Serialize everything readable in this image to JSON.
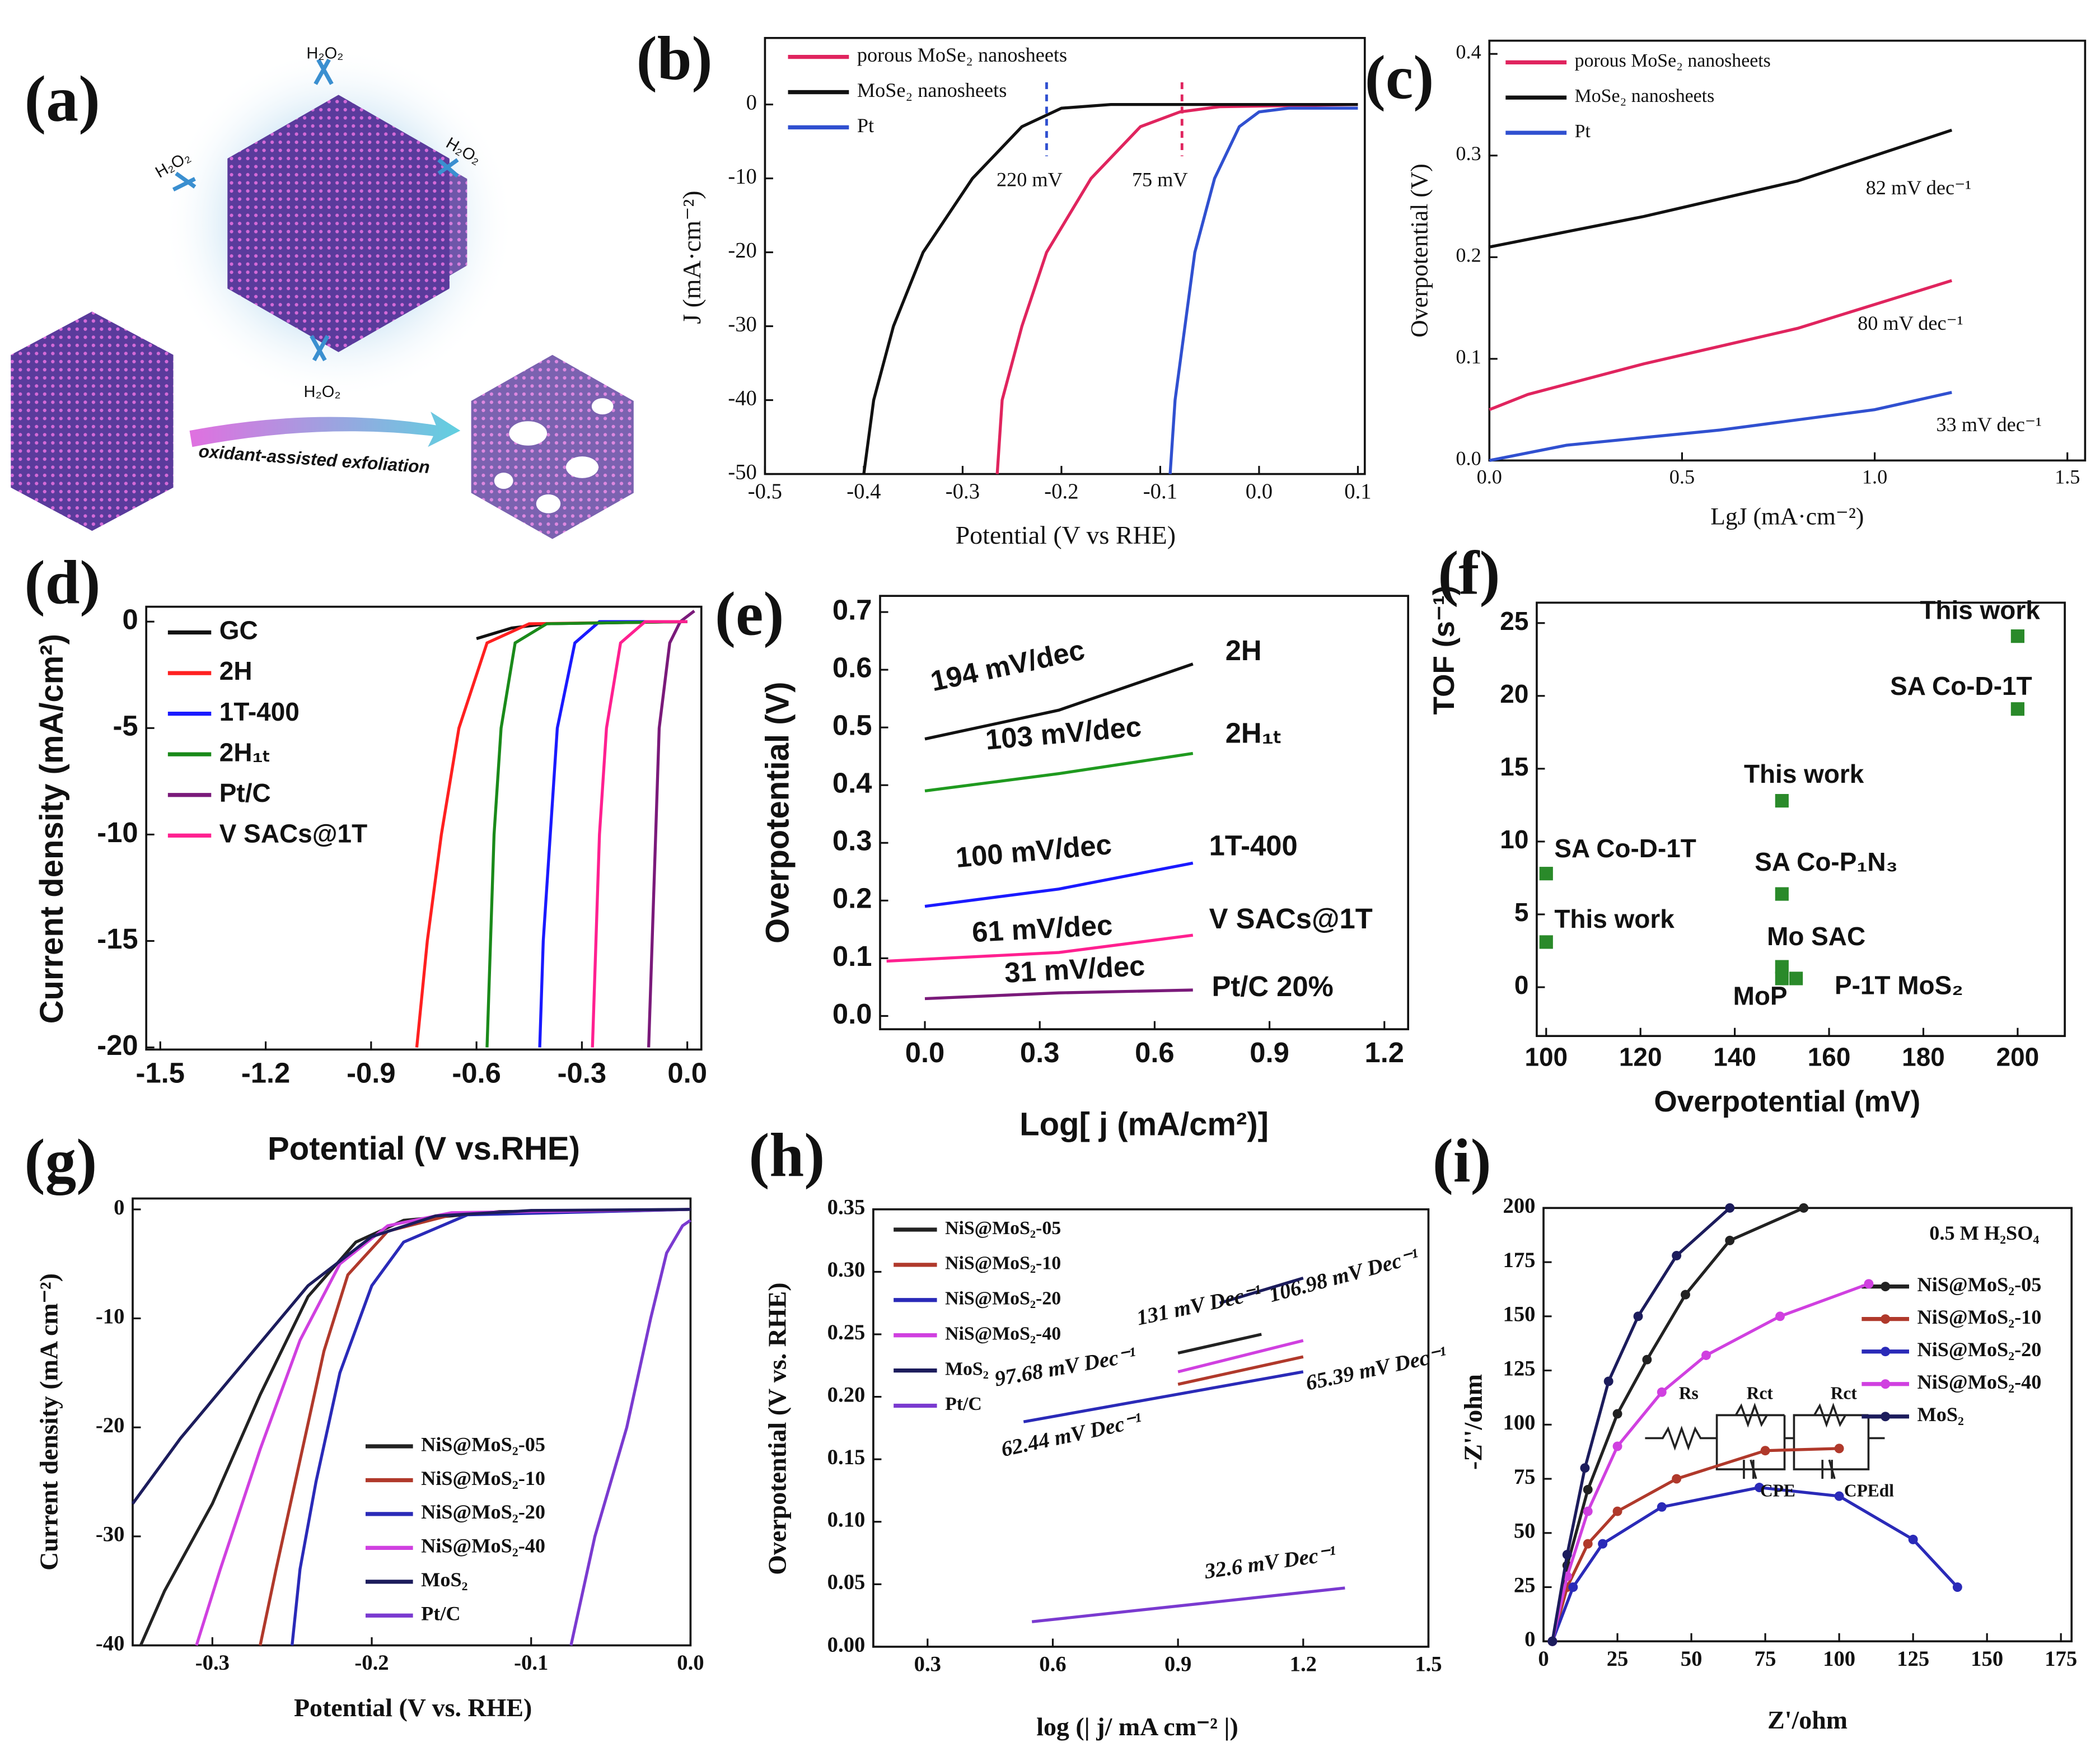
{
  "illustration": {
    "panel": "(a)",
    "oxidant_labels": [
      "H₂O₂",
      "H₂O₂",
      "H₂O₂",
      "H₂O₂"
    ],
    "arrow_label": "oxidant-assisted exfoliation"
  },
  "chart_data": [
    {
      "type": "line",
      "panel": "(b)",
      "xlabel": "Potential (V vs RHE)",
      "ylabel": "J (mA·cm⁻²)",
      "xlim": [
        -0.5,
        0.107
      ],
      "ylim": [
        -50,
        9
      ],
      "xticks": [
        -0.5,
        -0.4,
        -0.3,
        -0.2,
        -0.1,
        {
          "value": 0,
          "label": "0.0"
        },
        0.1
      ],
      "yticks": [
        0,
        -10,
        -20,
        -30,
        -40,
        -50
      ],
      "series": [
        {
          "name": "porous MoSe₂ nanosheets",
          "color": "#e0245e",
          "x": [
            -0.265,
            -0.26,
            -0.24,
            -0.215,
            -0.17,
            -0.12,
            -0.08,
            -0.04,
            0.1
          ],
          "values": [
            -50,
            -40,
            -30,
            -20,
            -10,
            -3,
            -1,
            -0.3,
            0
          ]
        },
        {
          "name": "MoSe₂ nanosheets",
          "color": "#111111",
          "x": [
            -0.4,
            -0.39,
            -0.37,
            -0.34,
            -0.29,
            -0.24,
            -0.2,
            -0.15,
            0.1
          ],
          "values": [
            -50,
            -40,
            -30,
            -20,
            -10,
            -3,
            -0.5,
            0,
            0
          ]
        },
        {
          "name": "Pt",
          "color": "#3050d0",
          "x": [
            -0.09,
            -0.085,
            -0.075,
            -0.065,
            -0.045,
            -0.02,
            0,
            0.03,
            0.1
          ],
          "values": [
            -50,
            -40,
            -30,
            -20,
            -10,
            -3,
            -1,
            -0.5,
            -0.5
          ]
        }
      ],
      "vlines": [
        {
          "x": -0.215,
          "color": "#3050d0"
        },
        {
          "x": -0.078,
          "color": "#e0245e"
        }
      ],
      "annotations": [
        "220 mV",
        "75 mV"
      ]
    },
    {
      "type": "line",
      "panel": "(c)",
      "xlabel": "LgJ (mA·cm⁻²)",
      "ylabel": "Overpotential (V)",
      "xlim": [
        0,
        1.546
      ],
      "ylim": [
        0,
        0.413
      ],
      "xticks": [
        {
          "value": 0,
          "label": "0.0"
        },
        0.5,
        {
          "value": 1,
          "label": "1.0"
        },
        1.5
      ],
      "yticks": [
        {
          "value": 0,
          "label": "0.0"
        },
        0.1,
        0.2,
        0.3,
        0.4
      ],
      "series": [
        {
          "name": "porous MoSe₂ nanosheets",
          "color": "#e0245e",
          "x": [
            0,
            0.1,
            0.4,
            0.8,
            1.2
          ],
          "values": [
            0.05,
            0.065,
            0.095,
            0.13,
            0.177
          ],
          "slope": "80 mV dec⁻¹"
        },
        {
          "name": "MoSe₂ nanosheets",
          "color": "#111111",
          "x": [
            0,
            0.4,
            0.8,
            1.2
          ],
          "values": [
            0.21,
            0.24,
            0.275,
            0.325
          ],
          "slope": "82 mV dec⁻¹"
        },
        {
          "name": "Pt",
          "color": "#3050d0",
          "x": [
            0,
            0.2,
            0.6,
            1.0,
            1.2
          ],
          "values": [
            0,
            0.015,
            0.03,
            0.05,
            0.067
          ],
          "slope": "33 mV dec⁻¹"
        }
      ]
    },
    {
      "type": "line",
      "panel": "(d)",
      "xlabel": "Potential (V vs.RHE)",
      "ylabel": "Current density (mA/cm²)",
      "xlim": [
        -1.54,
        0.04
      ],
      "ylim": [
        -20.1,
        0.7
      ],
      "xticks": [
        -1.5,
        -1.2,
        -0.9,
        -0.6,
        -0.3,
        {
          "value": 0,
          "label": "0.0"
        }
      ],
      "yticks": [
        0,
        -5,
        -10,
        -15,
        -20
      ],
      "series": [
        {
          "name": "GC",
          "color": "#111111",
          "x": [
            -0.6,
            -0.5,
            -0.4,
            0
          ],
          "values": [
            -0.8,
            -0.3,
            -0.1,
            0
          ]
        },
        {
          "name": "2H",
          "color": "#ff2020",
          "x": [
            -0.77,
            -0.74,
            -0.7,
            -0.65,
            -0.57,
            -0.45,
            0
          ],
          "values": [
            -20,
            -15,
            -10,
            -5,
            -1,
            -0.1,
            0
          ]
        },
        {
          "name": "1T-400",
          "color": "#1a1aff",
          "x": [
            -0.42,
            -0.41,
            -0.39,
            -0.37,
            -0.32,
            -0.25,
            0
          ],
          "values": [
            -20,
            -15,
            -10,
            -5,
            -1,
            0,
            0
          ]
        },
        {
          "name": "2H₁ₜ",
          "color": "#1a8a1a",
          "x": [
            -0.57,
            -0.56,
            -0.55,
            -0.53,
            -0.49,
            -0.4,
            0
          ],
          "values": [
            -20,
            -15,
            -10,
            -5,
            -1,
            -0.1,
            0
          ]
        },
        {
          "name": "Pt/C",
          "color": "#7a1a7a",
          "x": [
            -0.11,
            -0.1,
            -0.09,
            -0.08,
            -0.05,
            -0.02,
            0.02
          ],
          "values": [
            -20,
            -15,
            -10,
            -5,
            -1,
            0,
            0.5
          ]
        },
        {
          "name": "V SACs@1T",
          "color": "#ff2090",
          "x": [
            -0.27,
            -0.26,
            -0.25,
            -0.23,
            -0.19,
            -0.12,
            0
          ],
          "values": [
            -20,
            -15,
            -10,
            -5,
            -1,
            0,
            0
          ]
        }
      ]
    },
    {
      "type": "line",
      "panel": "(e)",
      "xlabel": "Log[ j (mA/cm²)]",
      "ylabel": "Overpotential (V)",
      "xlim": [
        -0.117,
        1.262
      ],
      "ylim": [
        -0.023,
        0.728
      ],
      "xticks": [
        {
          "value": 0,
          "label": "0.0"
        },
        0.3,
        0.6,
        0.9,
        1.2
      ],
      "yticks": [
        {
          "value": 0,
          "label": "0.0"
        },
        0.1,
        0.2,
        0.3,
        0.4,
        0.5,
        0.6,
        0.7
      ],
      "series": [
        {
          "name": "2H",
          "color": "#111111",
          "x": [
            0,
            0.35,
            0.7
          ],
          "values": [
            0.48,
            0.53,
            0.61
          ],
          "slope": "194 mV/dec"
        },
        {
          "name": "2H₁ₜ",
          "color": "#1f9a1f",
          "x": [
            0,
            0.35,
            0.7
          ],
          "values": [
            0.39,
            0.42,
            0.455
          ],
          "slope": "103 mV/dec"
        },
        {
          "name": "1T-400",
          "color": "#1a1aff",
          "x": [
            0,
            0.35,
            0.7
          ],
          "values": [
            0.19,
            0.22,
            0.265
          ],
          "slope": "100 mV/dec"
        },
        {
          "name": "V SACs@1T",
          "color": "#ff2090",
          "x": [
            -0.1,
            0.35,
            0.7
          ],
          "values": [
            0.095,
            0.11,
            0.14
          ],
          "slope": "61 mV/dec"
        },
        {
          "name": "Pt/C 20%",
          "color": "#7a1a7a",
          "x": [
            0,
            0.35,
            0.7
          ],
          "values": [
            0.03,
            0.04,
            0.045
          ],
          "slope": "31 mV/dec"
        }
      ]
    },
    {
      "type": "scatter",
      "panel": "(f)",
      "xlabel": "Overpotential (mV)",
      "ylabel": "TOF (s⁻¹)",
      "xlim": [
        98,
        210
      ],
      "ylim": [
        -3.35,
        26.4
      ],
      "xticks": [
        100,
        120,
        140,
        160,
        180,
        200
      ],
      "yticks": [
        0,
        5,
        10,
        15,
        20,
        25
      ],
      "color": "#2a8a2a",
      "x": [
        100,
        100,
        150,
        150,
        150,
        150,
        153,
        200,
        200
      ],
      "values": [
        7.8,
        3.1,
        12.8,
        6.4,
        1.4,
        0.6,
        0.6,
        24.1,
        19.1
      ],
      "point_labels": [
        "SA Co-D-1T",
        "This work",
        "This work",
        "SA Co-P₁N₃",
        "Mo SAC",
        "MoP",
        "P-1T MoS₂",
        "This work",
        "SA Co-D-1T"
      ],
      "label_colors": [
        "#222222",
        "#e02020",
        "#e02020",
        "#222222",
        "#222222",
        "#222222",
        "#222222",
        "#e02020",
        "#222222"
      ]
    },
    {
      "type": "line",
      "panel": "(g)",
      "xlabel": "Potential (V vs. RHE)",
      "ylabel": "Current density (mA cm⁻²)",
      "xlim": [
        -0.35,
        0
      ],
      "ylim": [
        -40,
        1
      ],
      "xticks": [
        -0.3,
        -0.2,
        -0.1,
        {
          "value": 0,
          "label": "0.0"
        }
      ],
      "yticks": [
        0,
        -10,
        -20,
        -30,
        -40
      ],
      "series": [
        {
          "name": "NiS@MoS₂-05",
          "color": "#222222",
          "x": [
            -0.345,
            -0.33,
            -0.3,
            -0.27,
            -0.24,
            -0.21,
            -0.18,
            -0.12,
            0
          ],
          "values": [
            -40,
            -35,
            -27,
            -17,
            -8,
            -3,
            -1,
            -0.2,
            0
          ]
        },
        {
          "name": "NiS@MoS₂-10",
          "color": "#b0392b",
          "x": [
            -0.27,
            -0.26,
            -0.245,
            -0.23,
            -0.215,
            -0.19,
            -0.15,
            0
          ],
          "values": [
            -40,
            -33,
            -23,
            -13,
            -6,
            -2,
            -0.5,
            0
          ]
        },
        {
          "name": "NiS@MoS₂-20",
          "color": "#2a2ab8",
          "x": [
            -0.25,
            -0.245,
            -0.235,
            -0.22,
            -0.2,
            -0.18,
            -0.14,
            0
          ],
          "values": [
            -40,
            -33,
            -25,
            -15,
            -7,
            -3,
            -0.5,
            0
          ]
        },
        {
          "name": "NiS@MoS₂-40",
          "color": "#d040e0",
          "x": [
            -0.31,
            -0.295,
            -0.27,
            -0.245,
            -0.22,
            -0.19,
            -0.15,
            0
          ],
          "values": [
            -40,
            -33,
            -22,
            -12,
            -5,
            -1.5,
            -0.3,
            0
          ]
        },
        {
          "name": "MoS₂",
          "color": "#1c1c5c",
          "x": [
            -0.35,
            -0.32,
            -0.28,
            -0.24,
            -0.2,
            -0.16,
            -0.1,
            0
          ],
          "values": [
            -27,
            -21,
            -14,
            -7,
            -2.5,
            -0.6,
            -0.1,
            0
          ]
        },
        {
          "name": "Pt/C",
          "color": "#7a3ad0",
          "x": [
            -0.075,
            -0.06,
            -0.04,
            -0.025,
            -0.015,
            -0.005,
            0
          ],
          "values": [
            -40,
            -30,
            -20,
            -10,
            -4,
            -1.5,
            -1
          ]
        }
      ]
    },
    {
      "type": "line",
      "panel": "(h)",
      "xlabel": "log (| j/ mA cm⁻² |)",
      "ylabel": "Overpotential (V vs. RHE)",
      "xlim": [
        0.17,
        1.5
      ],
      "ylim": [
        0,
        0.35
      ],
      "xticks": [
        0.3,
        0.6,
        0.9,
        1.2,
        1.5
      ],
      "yticks": [
        {
          "value": 0,
          "label": "0.00"
        },
        0.05,
        {
          "value": 0.1,
          "label": "0.10"
        },
        0.15,
        {
          "value": 0.2,
          "label": "0.20"
        },
        0.25,
        {
          "value": 0.3,
          "label": "0.30"
        },
        0.35
      ],
      "series": [
        {
          "name": "NiS@MoS₂-05",
          "color": "#222222",
          "x": [
            0.9,
            1.1
          ],
          "values": [
            0.235,
            0.25
          ],
          "slope": "106.98 mV Dec⁻¹"
        },
        {
          "name": "NiS@MoS₂-10",
          "color": "#b0392b",
          "x": [
            0.9,
            1.2
          ],
          "values": [
            0.21,
            0.232
          ],
          "slope": "65.39 mV Dec⁻¹"
        },
        {
          "name": "NiS@MoS₂-20",
          "color": "#2a2ab8",
          "x": [
            0.53,
            1.2
          ],
          "values": [
            0.18,
            0.22
          ],
          "slope": "62.44 mV Dec⁻¹"
        },
        {
          "name": "NiS@MoS₂-40",
          "color": "#d040e0",
          "x": [
            0.9,
            1.2
          ],
          "values": [
            0.22,
            0.245
          ],
          "slope": "97.68 mV Dec⁻¹"
        },
        {
          "name": "MoS₂",
          "color": "#1c1c5c",
          "x": [
            1.0,
            1.2
          ],
          "values": [
            0.275,
            0.295
          ],
          "slope": "131 mV Dec⁻¹"
        },
        {
          "name": "Pt/C",
          "color": "#7a3ad0",
          "x": [
            0.55,
            1.3
          ],
          "values": [
            0.02,
            0.047
          ],
          "slope": "32.6 mV Dec⁻¹"
        }
      ]
    },
    {
      "type": "line",
      "panel": "(i)",
      "xlabel": "Z'/ohm",
      "ylabel": "-Z''/ohm",
      "markers": true,
      "xlim": [
        0,
        178.6
      ],
      "ylim": [
        0,
        200
      ],
      "xticks": [
        0,
        25,
        50,
        75,
        100,
        125,
        150,
        175
      ],
      "yticks": [
        0,
        25,
        50,
        75,
        100,
        125,
        150,
        175,
        200
      ],
      "series": [
        {
          "name": "NiS@MoS₂-05",
          "color": "#222222",
          "x": [
            3,
            8,
            15,
            25,
            35,
            48,
            63,
            88
          ],
          "values": [
            0,
            35,
            70,
            105,
            130,
            160,
            185,
            200
          ]
        },
        {
          "name": "NiS@MoS₂-10",
          "color": "#b0392b",
          "x": [
            3,
            8,
            15,
            25,
            45,
            75,
            100
          ],
          "values": [
            0,
            25,
            45,
            60,
            75,
            88,
            89
          ]
        },
        {
          "name": "NiS@MoS₂-20",
          "color": "#2a2ab8",
          "x": [
            3,
            10,
            20,
            40,
            73,
            100,
            125,
            140
          ],
          "values": [
            0,
            25,
            45,
            62,
            71,
            67,
            47,
            25
          ]
        },
        {
          "name": "NiS@MoS₂-40",
          "color": "#d040e0",
          "x": [
            3,
            8,
            15,
            25,
            40,
            55,
            80,
            110
          ],
          "values": [
            0,
            30,
            60,
            90,
            115,
            132,
            150,
            165
          ]
        },
        {
          "name": "MoS₂",
          "color": "#1c1c5c",
          "x": [
            3,
            8,
            14,
            22,
            32,
            45,
            63
          ],
          "values": [
            0,
            40,
            80,
            120,
            150,
            178,
            200
          ]
        }
      ],
      "annotations": [
        "0.5 M H₂SO₄"
      ],
      "circuit_labels": [
        "Rs",
        "Rct",
        "Rct",
        "CPE",
        "CPEdl"
      ]
    }
  ]
}
